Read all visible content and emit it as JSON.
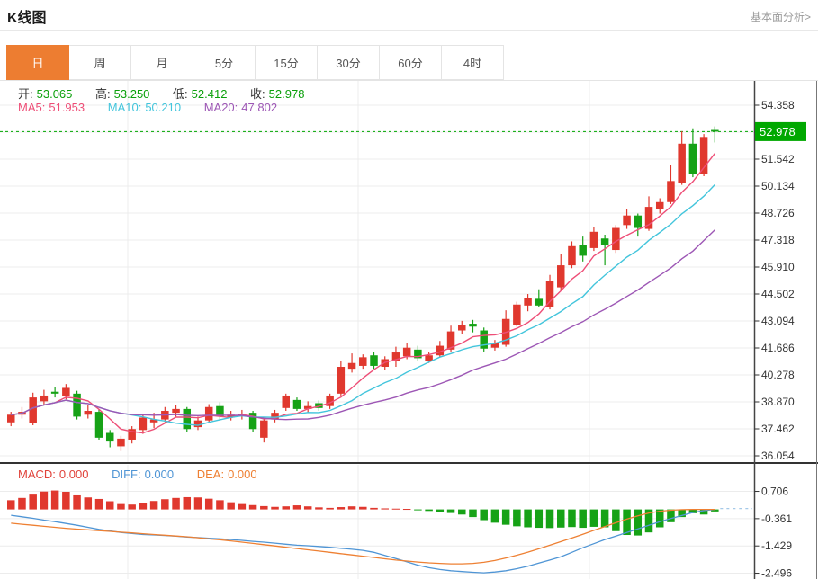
{
  "page": {
    "title": "K线图",
    "header_link": "基本面分析>"
  },
  "tabs": {
    "items": [
      "日",
      "周",
      "月",
      "5分",
      "15分",
      "30分",
      "60分",
      "4时"
    ],
    "selected": "日"
  },
  "ohlc": {
    "open_label": "开:",
    "open": "53.065",
    "high_label": "高:",
    "high": "53.250",
    "low_label": "低:",
    "low": "52.412",
    "close_label": "收:",
    "close": "52.978"
  },
  "ma": {
    "ma5_label": "MA5:",
    "ma5": "51.953",
    "ma10_label": "MA10:",
    "ma10": "50.210",
    "ma20_label": "MA20:",
    "ma20": "47.802"
  },
  "macd_header": {
    "macd_label": "MACD:",
    "macd": "0.000",
    "diff_label": "DIFF:",
    "diff": "0.000",
    "dea_label": "DEA:",
    "dea": "0.000"
  },
  "chart_data": {
    "type": "candlestick",
    "title": "K线图",
    "legend_position": "top-left-overlay",
    "grid": true,
    "colors": {
      "up": "#e0382e",
      "down": "#16a216",
      "ma5": "#ee4e77",
      "ma10": "#43c5dc",
      "ma20": "#9d57b5",
      "diff": "#4f95d5",
      "dea": "#ee8033",
      "last_price": "#00a800",
      "badge_text": "#ffffff",
      "axis_text": "#333333",
      "grid_line": "#ececec",
      "axis_line": "#444444",
      "tab_accent": "#ed7d31"
    },
    "main_panel": {
      "ylim": [
        36.054,
        54.358
      ],
      "y_tick_labels": [
        "54.358",
        "52.950",
        "51.542",
        "50.134",
        "48.726",
        "47.318",
        "45.910",
        "44.502",
        "43.094",
        "41.686",
        "40.278",
        "38.870",
        "37.462",
        "36.054"
      ],
      "last_price": 52.978,
      "last_price_label": "52.978",
      "ma_periods": [
        5,
        10,
        20
      ],
      "candles_ohlc": [
        [
          37.8,
          38.35,
          37.6,
          38.2
        ],
        [
          38.2,
          38.6,
          38.0,
          38.35
        ],
        [
          37.75,
          39.35,
          37.65,
          39.1
        ],
        [
          38.9,
          39.5,
          38.7,
          39.2
        ],
        [
          39.4,
          39.65,
          39.1,
          39.3
        ],
        [
          39.15,
          39.8,
          39.0,
          39.6
        ],
        [
          39.3,
          39.45,
          37.95,
          38.1
        ],
        [
          38.2,
          38.7,
          38.0,
          38.4
        ],
        [
          38.35,
          38.5,
          36.9,
          37.0
        ],
        [
          37.25,
          37.4,
          36.5,
          36.8
        ],
        [
          36.55,
          37.1,
          36.3,
          36.95
        ],
        [
          36.9,
          37.6,
          36.7,
          37.45
        ],
        [
          37.4,
          38.2,
          37.2,
          38.05
        ],
        [
          37.8,
          38.3,
          37.5,
          37.95
        ],
        [
          37.95,
          38.6,
          37.8,
          38.4
        ],
        [
          38.3,
          38.7,
          38.1,
          38.5
        ],
        [
          38.5,
          38.6,
          37.3,
          37.45
        ],
        [
          37.55,
          38.1,
          37.4,
          37.9
        ],
        [
          37.9,
          38.75,
          37.8,
          38.6
        ],
        [
          38.65,
          38.85,
          37.95,
          38.1
        ],
        [
          38.05,
          38.4,
          37.9,
          38.2
        ],
        [
          38.15,
          38.45,
          37.95,
          38.25
        ],
        [
          38.3,
          38.4,
          37.3,
          37.45
        ],
        [
          37.0,
          38.0,
          36.75,
          37.9
        ],
        [
          37.95,
          38.45,
          37.8,
          38.3
        ],
        [
          38.55,
          39.3,
          38.4,
          39.2
        ],
        [
          38.97,
          39.1,
          38.4,
          38.5
        ],
        [
          38.5,
          38.9,
          38.3,
          38.65
        ],
        [
          38.8,
          38.95,
          38.4,
          38.55
        ],
        [
          38.65,
          39.3,
          38.5,
          39.2
        ],
        [
          39.3,
          41.0,
          39.2,
          40.7
        ],
        [
          40.6,
          41.4,
          40.4,
          40.9
        ],
        [
          40.75,
          41.35,
          40.6,
          41.2
        ],
        [
          41.3,
          41.45,
          40.6,
          40.75
        ],
        [
          40.7,
          41.25,
          40.55,
          41.1
        ],
        [
          41.0,
          41.75,
          40.7,
          41.45
        ],
        [
          41.25,
          41.95,
          41.1,
          41.7
        ],
        [
          41.6,
          41.8,
          41.0,
          41.15
        ],
        [
          41.0,
          41.45,
          40.9,
          41.3
        ],
        [
          41.3,
          42.05,
          41.2,
          41.8
        ],
        [
          41.6,
          42.85,
          41.5,
          42.55
        ],
        [
          42.6,
          43.1,
          42.4,
          42.9
        ],
        [
          42.95,
          43.15,
          42.5,
          42.8
        ],
        [
          42.6,
          42.75,
          41.5,
          41.65
        ],
        [
          41.7,
          42.1,
          41.55,
          41.95
        ],
        [
          41.85,
          43.65,
          41.75,
          43.2
        ],
        [
          42.9,
          44.1,
          42.8,
          43.95
        ],
        [
          43.9,
          44.5,
          43.6,
          44.3
        ],
        [
          44.25,
          44.75,
          43.8,
          43.9
        ],
        [
          43.8,
          45.5,
          43.7,
          45.2
        ],
        [
          44.85,
          46.6,
          44.7,
          46.0
        ],
        [
          46.0,
          47.25,
          45.85,
          47.0
        ],
        [
          47.05,
          47.5,
          46.2,
          46.5
        ],
        [
          46.9,
          48.0,
          46.75,
          47.75
        ],
        [
          47.4,
          47.6,
          46.0,
          47.05
        ],
        [
          46.8,
          48.1,
          46.65,
          47.95
        ],
        [
          48.1,
          48.95,
          47.9,
          48.6
        ],
        [
          48.6,
          48.7,
          47.5,
          47.95
        ],
        [
          47.9,
          49.6,
          47.8,
          49.05
        ],
        [
          48.95,
          49.5,
          48.7,
          49.3
        ],
        [
          49.3,
          51.25,
          49.2,
          50.4
        ],
        [
          50.3,
          53.0,
          50.2,
          52.35
        ],
        [
          52.35,
          53.15,
          50.6,
          50.75
        ],
        [
          50.75,
          52.85,
          50.65,
          52.7
        ],
        [
          53.065,
          53.25,
          52.412,
          52.978
        ]
      ]
    },
    "macd_panel": {
      "y_tick_labels": [
        "0.706",
        "-0.361",
        "-1.429",
        "-2.496"
      ],
      "histogram": [
        0.36,
        0.45,
        0.58,
        0.7,
        0.74,
        0.69,
        0.55,
        0.47,
        0.41,
        0.32,
        0.21,
        0.19,
        0.24,
        0.33,
        0.4,
        0.45,
        0.48,
        0.47,
        0.42,
        0.36,
        0.28,
        0.21,
        0.17,
        0.13,
        0.1,
        0.12,
        0.16,
        0.12,
        0.08,
        0.06,
        0.09,
        0.12,
        0.1,
        0.06,
        0.04,
        0.03,
        0.02,
        -0.03,
        -0.06,
        -0.1,
        -0.14,
        -0.2,
        -0.3,
        -0.42,
        -0.52,
        -0.6,
        -0.66,
        -0.7,
        -0.72,
        -0.73,
        -0.71,
        -0.69,
        -0.72,
        -0.68,
        -0.7,
        -0.85,
        -1.0,
        -1.02,
        -0.9,
        -0.7,
        -0.5,
        -0.3,
        -0.15,
        -0.2,
        -0.08
      ],
      "diff_line": [
        -0.23,
        -0.29,
        -0.35,
        -0.42,
        -0.48,
        -0.55,
        -0.62,
        -0.7,
        -0.78,
        -0.84,
        -0.9,
        -0.94,
        -0.98,
        -1.0,
        -1.02,
        -1.05,
        -1.08,
        -1.1,
        -1.13,
        -1.15,
        -1.18,
        -1.21,
        -1.25,
        -1.28,
        -1.32,
        -1.36,
        -1.4,
        -1.42,
        -1.45,
        -1.48,
        -1.52,
        -1.56,
        -1.6,
        -1.68,
        -1.8,
        -1.92,
        -2.05,
        -2.18,
        -2.28,
        -2.35,
        -2.4,
        -2.43,
        -2.46,
        -2.48,
        -2.45,
        -2.4,
        -2.32,
        -2.22,
        -2.1,
        -1.98,
        -1.85,
        -1.68,
        -1.5,
        -1.34,
        -1.18,
        -1.04,
        -0.9,
        -0.76,
        -0.62,
        -0.48,
        -0.36,
        -0.24,
        -0.12,
        -0.05,
        0.0
      ],
      "dea_line": [
        -0.54,
        -0.58,
        -0.62,
        -0.66,
        -0.7,
        -0.74,
        -0.77,
        -0.8,
        -0.83,
        -0.86,
        -0.89,
        -0.92,
        -0.95,
        -0.98,
        -1.01,
        -1.04,
        -1.07,
        -1.11,
        -1.15,
        -1.19,
        -1.23,
        -1.28,
        -1.33,
        -1.38,
        -1.43,
        -1.48,
        -1.53,
        -1.58,
        -1.63,
        -1.68,
        -1.73,
        -1.78,
        -1.83,
        -1.88,
        -1.93,
        -1.98,
        -2.02,
        -2.06,
        -2.09,
        -2.11,
        -2.13,
        -2.13,
        -2.11,
        -2.07,
        -2.0,
        -1.9,
        -1.79,
        -1.67,
        -1.54,
        -1.4,
        -1.26,
        -1.12,
        -0.97,
        -0.82,
        -0.67,
        -0.52,
        -0.38,
        -0.25,
        -0.14,
        -0.07,
        -0.03,
        -0.01,
        0.0,
        0.0,
        0.0
      ]
    }
  }
}
